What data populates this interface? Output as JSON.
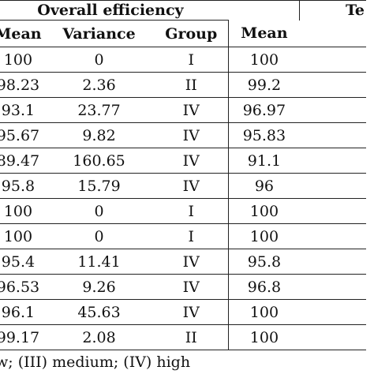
{
  "group_headers": {
    "overall": "Overall efficiency",
    "second": "Te"
  },
  "columns": [
    "Mean",
    "Variance",
    "Group",
    "Mean"
  ],
  "rows": [
    {
      "mean": "100",
      "variance": "0",
      "group": "I",
      "mean2": "100"
    },
    {
      "mean": "98.23",
      "variance": "2.36",
      "group": "II",
      "mean2": "99.2"
    },
    {
      "mean": "93.1",
      "variance": "23.77",
      "group": "IV",
      "mean2": "96.97"
    },
    {
      "mean": "95.67",
      "variance": "9.82",
      "group": "IV",
      "mean2": "95.83"
    },
    {
      "mean": "89.47",
      "variance": "160.65",
      "group": "IV",
      "mean2": "91.1"
    },
    {
      "mean": "95.8",
      "variance": "15.79",
      "group": "IV",
      "mean2": "96"
    },
    {
      "mean": "100",
      "variance": "0",
      "group": "I",
      "mean2": "100"
    },
    {
      "mean": "100",
      "variance": "0",
      "group": "I",
      "mean2": "100"
    },
    {
      "mean": "95.4",
      "variance": "11.41",
      "group": "IV",
      "mean2": "95.8"
    },
    {
      "mean": "96.53",
      "variance": "9.26",
      "group": "IV",
      "mean2": "96.8"
    },
    {
      "mean": "96.1",
      "variance": "45.63",
      "group": "IV",
      "mean2": "100"
    },
    {
      "mean": "99.17",
      "variance": "2.08",
      "group": "II",
      "mean2": "100"
    }
  ],
  "footnote": "w; (III) medium; (IV) high"
}
